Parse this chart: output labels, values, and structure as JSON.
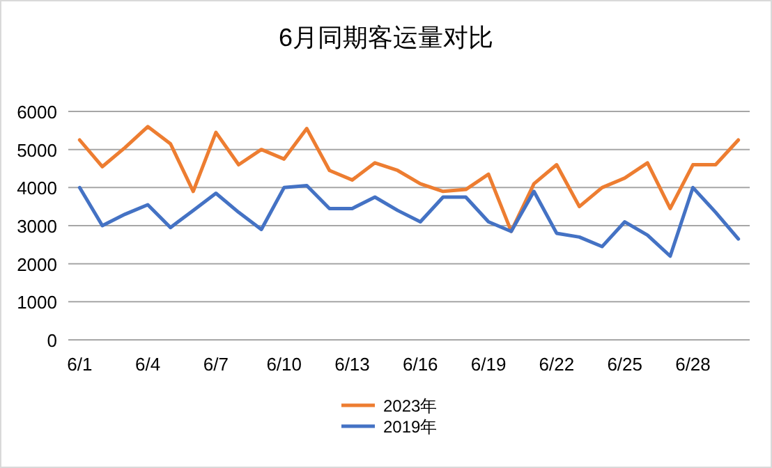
{
  "chart_data": {
    "type": "line",
    "title": "6月同期客运量对比",
    "categories": [
      "6/1",
      null,
      null,
      "6/4",
      null,
      null,
      "6/7",
      null,
      null,
      "6/10",
      null,
      null,
      "6/13",
      null,
      null,
      "6/16",
      null,
      null,
      "6/19",
      null,
      null,
      "6/22",
      null,
      null,
      "6/25",
      null,
      null,
      "6/28",
      null,
      null
    ],
    "series": [
      {
        "name": "2023年",
        "color": "#ed7d31",
        "values": [
          5250,
          4550,
          5050,
          5600,
          5150,
          3900,
          5450,
          4600,
          5000,
          4750,
          5550,
          4450,
          4200,
          4650,
          4450,
          4100,
          3900,
          3950,
          4350,
          2850,
          4100,
          4600,
          3500,
          4000,
          4250,
          4650,
          3450,
          4600,
          4600,
          5250
        ]
      },
      {
        "name": "2019年",
        "color": "#4472c4",
        "values": [
          4000,
          3000,
          3300,
          3550,
          2950,
          3400,
          3850,
          3350,
          2900,
          4000,
          4050,
          3450,
          3450,
          3750,
          3400,
          3100,
          3750,
          3750,
          3100,
          2850,
          3900,
          2800,
          2700,
          2450,
          3100,
          2750,
          2200,
          4000,
          3350,
          2650
        ]
      }
    ],
    "ylim": [
      0,
      6000
    ],
    "yticks": [
      0,
      1000,
      2000,
      3000,
      4000,
      5000,
      6000
    ],
    "grid": "y",
    "legend": "bottom",
    "marker": "none",
    "line_style": "solid"
  }
}
